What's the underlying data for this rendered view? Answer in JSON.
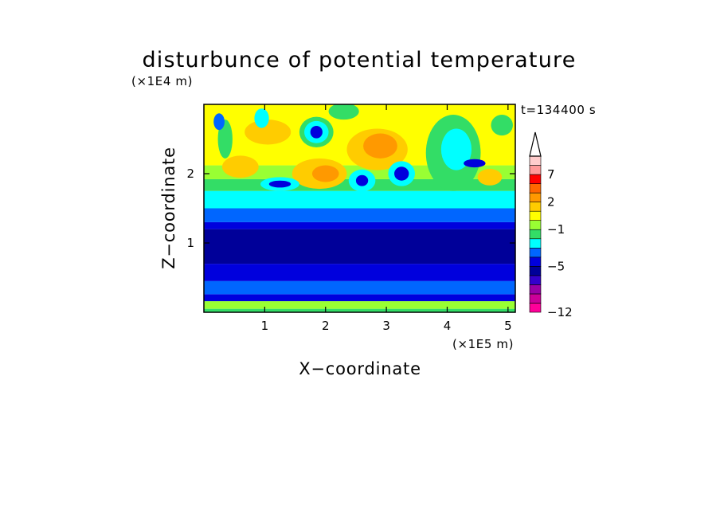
{
  "chart_data": {
    "type": "heatmap",
    "title": "disturbunce of potential temperature",
    "time_label": "t=134400 s",
    "xlabel": "X−coordinate",
    "ylabel": "Z−coordinate",
    "x_scale_label": "(×1E5 m)",
    "y_scale_label": "(×1E4 m)",
    "xlim": [
      0,
      5.12
    ],
    "ylim": [
      0,
      3.0
    ],
    "x_ticks": [
      {
        "value": 1,
        "label": "1"
      },
      {
        "value": 2,
        "label": "2"
      },
      {
        "value": 3,
        "label": "3"
      },
      {
        "value": 4,
        "label": "4"
      },
      {
        "value": 5,
        "label": "5"
      }
    ],
    "y_ticks": [
      {
        "value": 1,
        "label": "1"
      },
      {
        "value": 2,
        "label": "2"
      }
    ],
    "colorbar": {
      "label_values": [
        {
          "value": 7,
          "label": "7"
        },
        {
          "value": 2,
          "label": "2"
        },
        {
          "value": -1,
          "label": "−1"
        },
        {
          "value": -5,
          "label": "−5"
        },
        {
          "value": -12,
          "label": "−12"
        }
      ],
      "bins": [
        {
          "color": "#ff0099"
        },
        {
          "color": "#cc0099"
        },
        {
          "color": "#9900a6"
        },
        {
          "color": "#3300cc"
        },
        {
          "color": "#000099"
        },
        {
          "color": "#0000dd"
        },
        {
          "color": "#0066ff"
        },
        {
          "color": "#00ffff"
        },
        {
          "color": "#33dd66"
        },
        {
          "color": "#99ff33"
        },
        {
          "color": "#ffff00"
        },
        {
          "color": "#ffcc00"
        },
        {
          "color": "#ff9900"
        },
        {
          "color": "#ff6600"
        },
        {
          "color": "#ff0000"
        },
        {
          "color": "#ff9999"
        },
        {
          "color": "#ffcccc"
        }
      ],
      "extend": "top"
    },
    "bands": [
      {
        "z": [
          0.0,
          0.05
        ],
        "color": "#33dd66"
      },
      {
        "z": [
          0.05,
          0.16
        ],
        "color": "#99ff33"
      },
      {
        "z": [
          0.16,
          0.26
        ],
        "color": "#0000dd"
      },
      {
        "z": [
          0.26,
          0.45
        ],
        "color": "#0066ff"
      },
      {
        "z": [
          0.45,
          0.7
        ],
        "color": "#0000dd"
      },
      {
        "z": [
          0.7,
          1.2
        ],
        "color": "#000099"
      },
      {
        "z": [
          1.2,
          1.3
        ],
        "color": "#0000dd"
      },
      {
        "z": [
          1.3,
          1.5
        ],
        "color": "#0066ff"
      },
      {
        "z": [
          1.5,
          1.75
        ],
        "color": "#00ffff"
      },
      {
        "z": [
          1.75,
          1.92
        ],
        "color": "#33dd66"
      },
      {
        "z": [
          1.92,
          2.12
        ],
        "color": "#99ff33"
      },
      {
        "z": [
          2.12,
          3.0
        ],
        "color": "#ffff00"
      }
    ],
    "blobs": [
      {
        "x": 1.9,
        "z": 2.0,
        "rx": 0.45,
        "rz": 0.22,
        "color": "#ffcc00"
      },
      {
        "x": 2.0,
        "z": 2.0,
        "rx": 0.22,
        "rz": 0.12,
        "color": "#ff9900"
      },
      {
        "x": 2.85,
        "z": 2.35,
        "rx": 0.5,
        "rz": 0.3,
        "color": "#ffcc00"
      },
      {
        "x": 2.9,
        "z": 2.4,
        "rx": 0.28,
        "rz": 0.18,
        "color": "#ff9900"
      },
      {
        "x": 1.05,
        "z": 2.6,
        "rx": 0.38,
        "rz": 0.18,
        "color": "#ffcc00"
      },
      {
        "x": 0.6,
        "z": 2.1,
        "rx": 0.3,
        "rz": 0.16,
        "color": "#ffcc00"
      },
      {
        "x": 0.35,
        "z": 2.5,
        "rx": 0.12,
        "rz": 0.28,
        "color": "#33dd66"
      },
      {
        "x": 0.25,
        "z": 2.75,
        "rx": 0.09,
        "rz": 0.12,
        "color": "#0066ff"
      },
      {
        "x": 0.95,
        "z": 2.8,
        "rx": 0.12,
        "rz": 0.14,
        "color": "#00ffff"
      },
      {
        "x": 1.25,
        "z": 1.85,
        "rx": 0.32,
        "rz": 0.1,
        "color": "#00ffff"
      },
      {
        "x": 1.25,
        "z": 1.85,
        "rx": 0.18,
        "rz": 0.05,
        "color": "#0000dd"
      },
      {
        "x": 1.85,
        "z": 2.6,
        "rx": 0.28,
        "rz": 0.22,
        "color": "#33dd66"
      },
      {
        "x": 1.85,
        "z": 2.6,
        "rx": 0.2,
        "rz": 0.16,
        "color": "#00ffff"
      },
      {
        "x": 1.85,
        "z": 2.6,
        "rx": 0.1,
        "rz": 0.09,
        "color": "#0000dd"
      },
      {
        "x": 2.6,
        "z": 1.9,
        "rx": 0.22,
        "rz": 0.16,
        "color": "#00ffff"
      },
      {
        "x": 2.6,
        "z": 1.9,
        "rx": 0.1,
        "rz": 0.08,
        "color": "#0000dd"
      },
      {
        "x": 3.25,
        "z": 2.0,
        "rx": 0.22,
        "rz": 0.18,
        "color": "#00ffff"
      },
      {
        "x": 3.25,
        "z": 2.0,
        "rx": 0.12,
        "rz": 0.1,
        "color": "#0000dd"
      },
      {
        "x": 2.3,
        "z": 2.9,
        "rx": 0.25,
        "rz": 0.12,
        "color": "#33dd66"
      },
      {
        "x": 4.1,
        "z": 2.3,
        "rx": 0.45,
        "rz": 0.55,
        "color": "#33dd66"
      },
      {
        "x": 4.15,
        "z": 2.35,
        "rx": 0.25,
        "rz": 0.3,
        "color": "#00ffff"
      },
      {
        "x": 4.45,
        "z": 2.15,
        "rx": 0.18,
        "rz": 0.06,
        "color": "#0000dd"
      },
      {
        "x": 4.7,
        "z": 1.95,
        "rx": 0.2,
        "rz": 0.12,
        "color": "#ffcc00"
      },
      {
        "x": 4.9,
        "z": 2.7,
        "rx": 0.18,
        "rz": 0.15,
        "color": "#33dd66"
      }
    ]
  }
}
